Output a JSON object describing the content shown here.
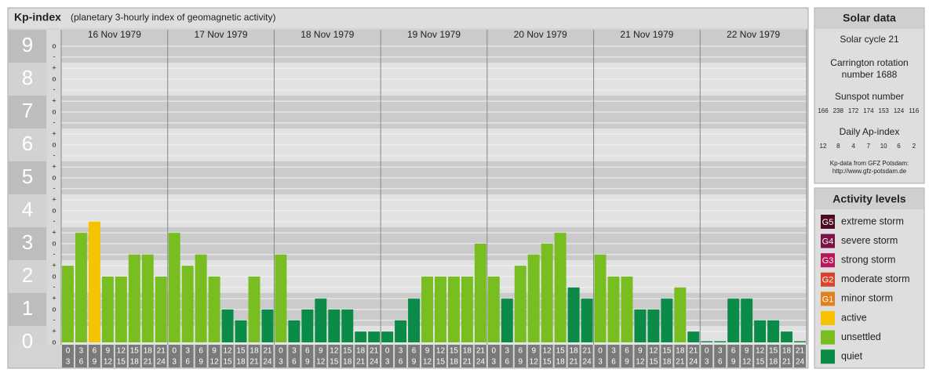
{
  "chart_data": {
    "type": "bar",
    "title": "Kp-index",
    "subtitle": "(planetary 3-hourly index of geomagnetic activity)",
    "ylim": [
      0,
      9
    ],
    "yticks": [
      0,
      1,
      2,
      3,
      4,
      5,
      6,
      7,
      8,
      9
    ],
    "minor_ticks": [
      {
        "value": 0,
        "label": "o"
      },
      {
        "value": 0.33,
        "label": "+"
      },
      {
        "value": 0.67,
        "label": "-"
      },
      {
        "value": 1,
        "label": "o"
      },
      {
        "value": 1.33,
        "label": "+"
      },
      {
        "value": 1.67,
        "label": "-"
      },
      {
        "value": 2,
        "label": "o"
      },
      {
        "value": 2.33,
        "label": "+"
      },
      {
        "value": 2.67,
        "label": "-"
      },
      {
        "value": 3,
        "label": "o"
      },
      {
        "value": 3.33,
        "label": "+"
      },
      {
        "value": 3.67,
        "label": "-"
      },
      {
        "value": 4,
        "label": "o"
      },
      {
        "value": 4.33,
        "label": "+"
      },
      {
        "value": 4.67,
        "label": "-"
      },
      {
        "value": 5,
        "label": "o"
      },
      {
        "value": 5.33,
        "label": "+"
      },
      {
        "value": 5.67,
        "label": "-"
      },
      {
        "value": 6,
        "label": "o"
      },
      {
        "value": 6.33,
        "label": "+"
      },
      {
        "value": 6.67,
        "label": "-"
      },
      {
        "value": 7,
        "label": "o"
      },
      {
        "value": 7.33,
        "label": "+"
      },
      {
        "value": 7.67,
        "label": "-"
      },
      {
        "value": 8,
        "label": "o"
      },
      {
        "value": 8.33,
        "label": "+"
      },
      {
        "value": 8.67,
        "label": "-"
      },
      {
        "value": 9,
        "label": "o"
      }
    ],
    "time_slots": [
      [
        "0",
        "3"
      ],
      [
        "3",
        "6"
      ],
      [
        "6",
        "9"
      ],
      [
        "9",
        "12"
      ],
      [
        "12",
        "15"
      ],
      [
        "15",
        "18"
      ],
      [
        "18",
        "21"
      ],
      [
        "21",
        "24"
      ]
    ],
    "days": [
      {
        "label": "16 Nov 1979",
        "values": [
          2.33,
          3.33,
          3.67,
          2,
          2,
          2.67,
          2.67,
          2
        ],
        "colors": [
          "#78be21",
          "#78be21",
          "#f7c300",
          "#78be21",
          "#78be21",
          "#78be21",
          "#78be21",
          "#78be21"
        ]
      },
      {
        "label": "17 Nov 1979",
        "values": [
          3.33,
          2.33,
          2.67,
          2,
          1,
          0.67,
          2,
          1
        ],
        "colors": [
          "#78be21",
          "#78be21",
          "#78be21",
          "#78be21",
          "#0a8c48",
          "#0a8c48",
          "#78be21",
          "#0a8c48"
        ]
      },
      {
        "label": "18 Nov 1979",
        "values": [
          2.67,
          0.67,
          1,
          1.33,
          1,
          1,
          0.33,
          0.33
        ],
        "colors": [
          "#78be21",
          "#0a8c48",
          "#0a8c48",
          "#0a8c48",
          "#0a8c48",
          "#0a8c48",
          "#0a8c48",
          "#0a8c48"
        ]
      },
      {
        "label": "19 Nov 1979",
        "values": [
          0.33,
          0.67,
          1.33,
          2,
          2,
          2,
          2,
          3
        ],
        "colors": [
          "#0a8c48",
          "#0a8c48",
          "#0a8c48",
          "#78be21",
          "#78be21",
          "#78be21",
          "#78be21",
          "#78be21"
        ]
      },
      {
        "label": "20 Nov 1979",
        "values": [
          2,
          1.33,
          2.33,
          2.67,
          3,
          3.33,
          1.67,
          1.33
        ],
        "colors": [
          "#78be21",
          "#0a8c48",
          "#78be21",
          "#78be21",
          "#78be21",
          "#78be21",
          "#0a8c48",
          "#0a8c48"
        ]
      },
      {
        "label": "21 Nov 1979",
        "values": [
          2.67,
          2,
          2,
          1,
          1,
          1.33,
          1.67,
          0.33
        ],
        "colors": [
          "#78be21",
          "#78be21",
          "#78be21",
          "#0a8c48",
          "#0a8c48",
          "#0a8c48",
          "#78be21",
          "#0a8c48"
        ]
      },
      {
        "label": "22 Nov 1979",
        "values": [
          0,
          0,
          1.33,
          1.33,
          0.67,
          0.67,
          0.33,
          0
        ],
        "colors": [
          "#0a8c48",
          "#0a8c48",
          "#0a8c48",
          "#0a8c48",
          "#0a8c48",
          "#0a8c48",
          "#0a8c48",
          "#0a8c48"
        ]
      }
    ]
  },
  "solar_data": {
    "title": "Solar data",
    "cycle": "Solar cycle 21",
    "carrington": [
      "Carrington rotation",
      "number 1688"
    ],
    "sunspot_label": "Sunspot number",
    "sunspot_numbers": [
      166,
      238,
      172,
      174,
      153,
      124,
      116
    ],
    "ap_label": "Daily Ap-index",
    "ap_values": [
      12,
      8,
      4,
      7,
      10,
      6,
      2
    ],
    "source": [
      "Kp-data from GFZ Potsdam:",
      "http://www.gfz-potsdam.de"
    ]
  },
  "activity_levels": {
    "title": "Activity levels",
    "items": [
      {
        "badge": "G5",
        "label": "extreme storm",
        "color": "#4d0a24"
      },
      {
        "badge": "G4",
        "label": "severe storm",
        "color": "#7a1248"
      },
      {
        "badge": "G3",
        "label": "strong storm",
        "color": "#b5195c"
      },
      {
        "badge": "G2",
        "label": "moderate storm",
        "color": "#d6452b"
      },
      {
        "badge": "G1",
        "label": "minor storm",
        "color": "#e0801e"
      },
      {
        "badge": null,
        "label": "active",
        "color": "#f7c300"
      },
      {
        "badge": null,
        "label": "unsettled",
        "color": "#78be21"
      },
      {
        "badge": null,
        "label": "quiet",
        "color": "#0a8c48"
      }
    ]
  }
}
